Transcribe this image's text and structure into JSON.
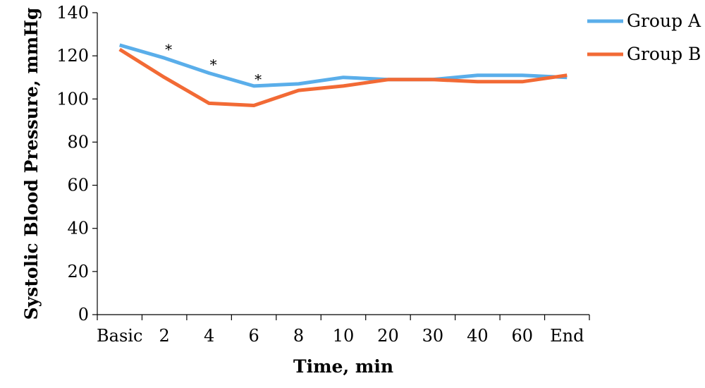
{
  "chart_data": {
    "type": "line",
    "title": "",
    "xlabel": "Time, min",
    "ylabel": "Systolic Blood Pressure, mmHg",
    "categories": [
      "Basic",
      "2",
      "4",
      "6",
      "8",
      "10",
      "20",
      "30",
      "40",
      "60",
      "End"
    ],
    "ylim": [
      0,
      140
    ],
    "yticks": [
      0,
      20,
      40,
      60,
      80,
      100,
      120,
      140
    ],
    "grid": false,
    "legend_position": "top-right",
    "series": [
      {
        "name": "Group A",
        "color": "#5AAEEA",
        "values": [
          125,
          119,
          112,
          106,
          107,
          110,
          109,
          109,
          111,
          111,
          110
        ]
      },
      {
        "name": "Group B",
        "color": "#F26A35",
        "values": [
          123,
          110,
          98,
          97,
          104,
          106,
          109,
          109,
          108,
          108,
          111
        ]
      }
    ],
    "annotations": [
      {
        "text": "*",
        "category": "2",
        "y": 124
      },
      {
        "text": "*",
        "category": "4",
        "y": 117
      },
      {
        "text": "*",
        "category": "6",
        "y": 110
      }
    ]
  }
}
